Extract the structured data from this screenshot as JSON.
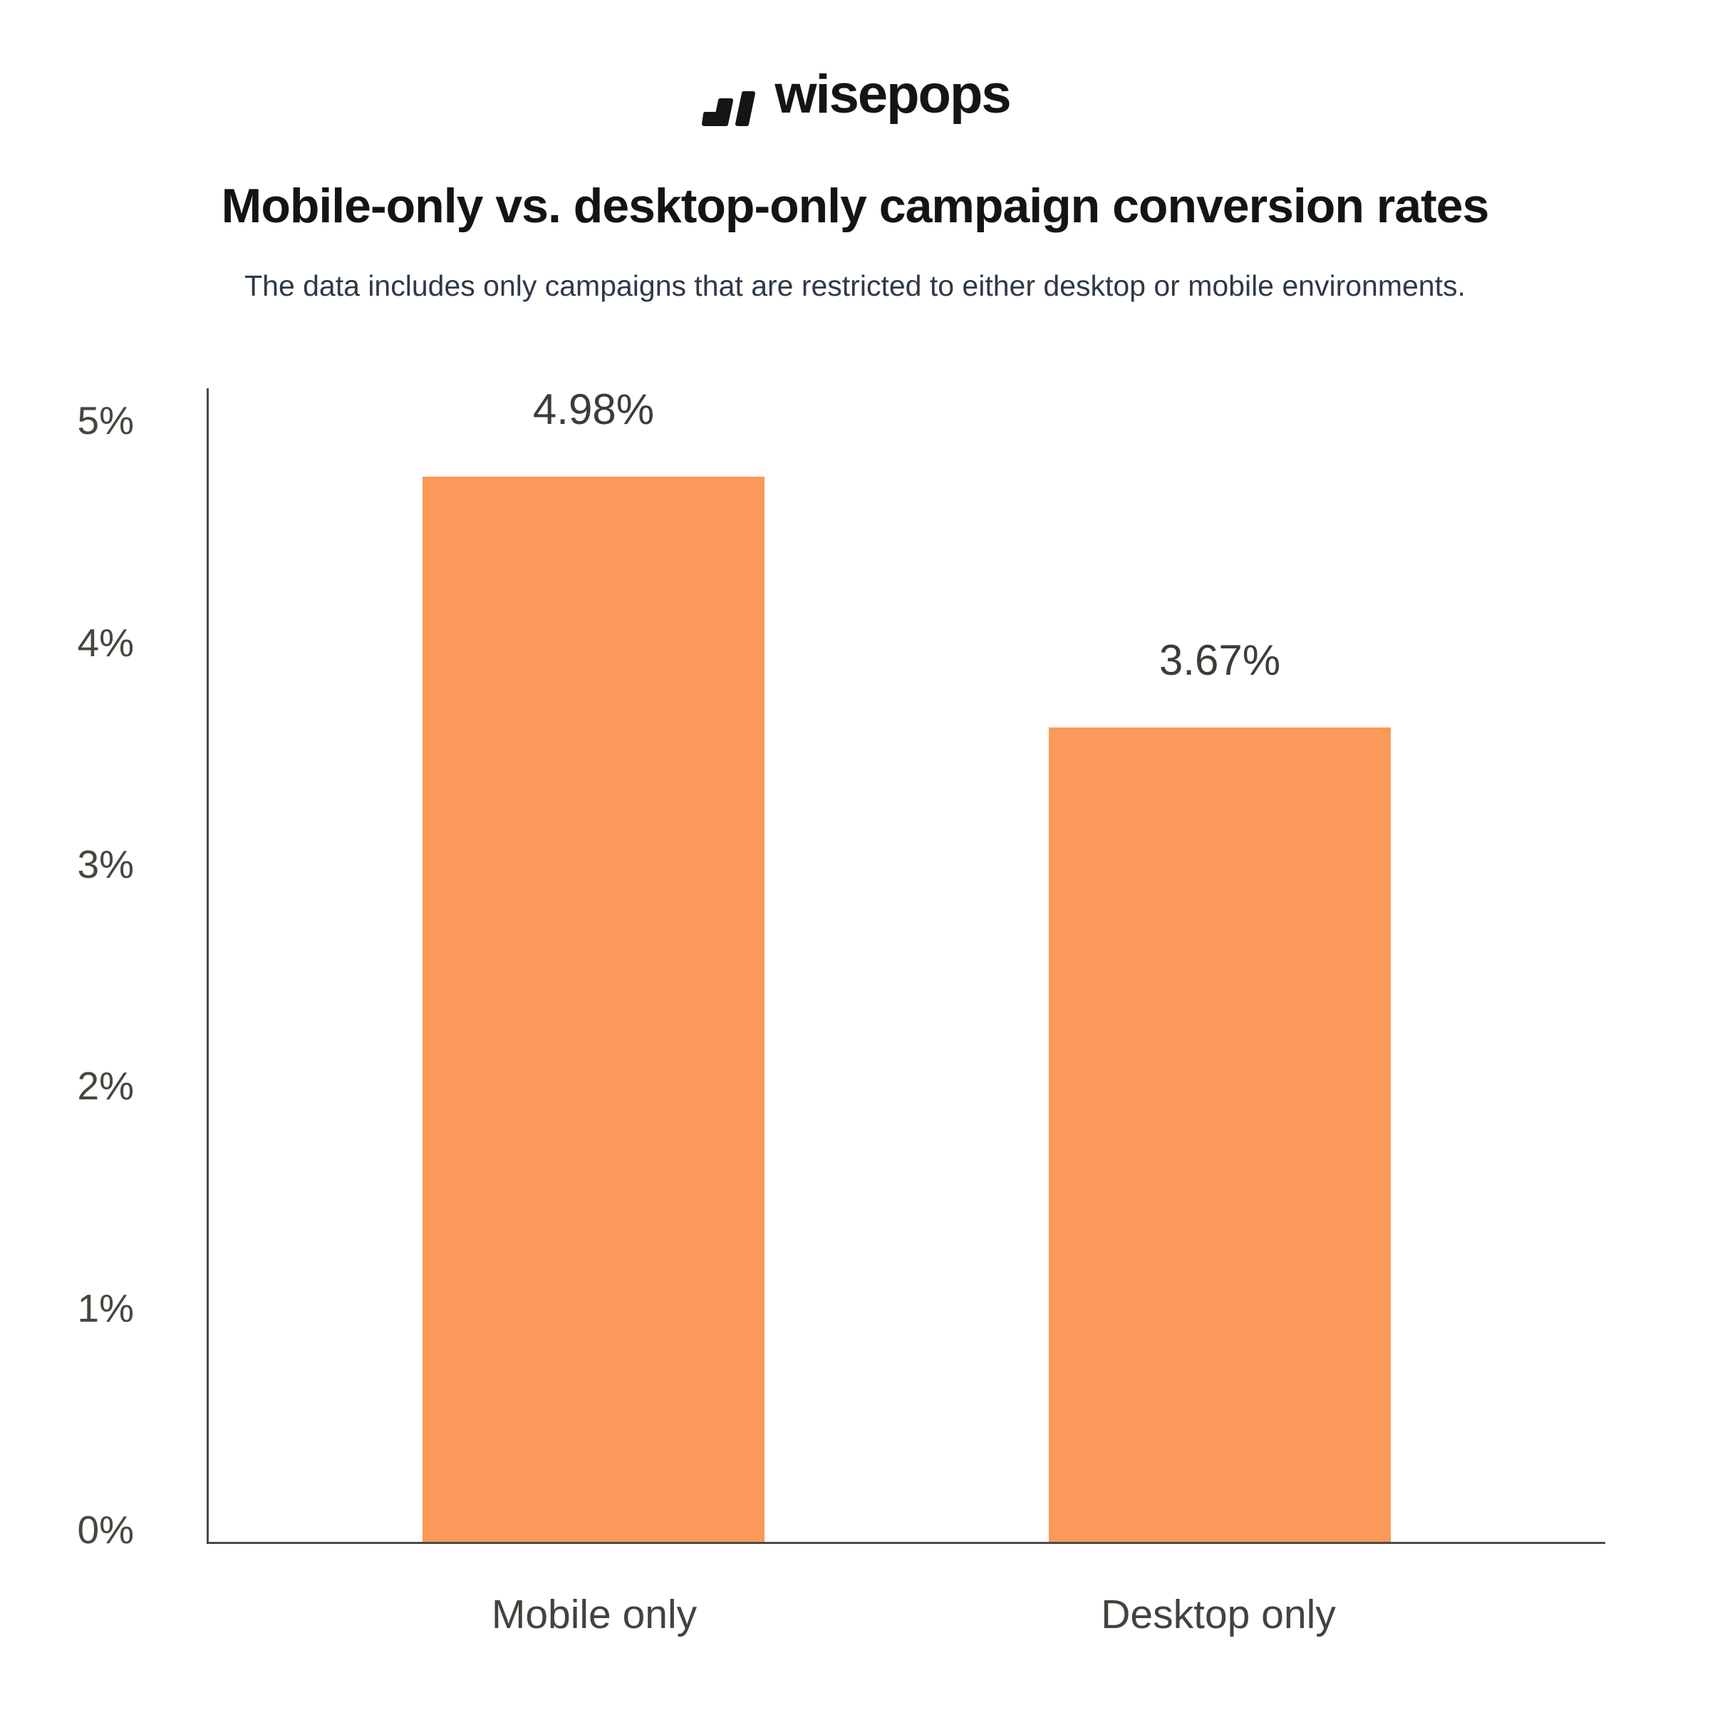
{
  "logo": {
    "brand": "wisepops"
  },
  "header": {
    "title": "Mobile-only vs. desktop-only campaign conversion rates",
    "subtitle": "The data includes only campaigns that are restricted to either desktop or mobile environments."
  },
  "chart_data": {
    "type": "bar",
    "title": "Mobile-only vs. desktop-only campaign conversion rates",
    "subtitle": "The data includes only campaigns that are restricted to either desktop or mobile environments.",
    "categories": [
      "Mobile only",
      "Desktop only"
    ],
    "values": [
      4.98,
      3.67
    ],
    "value_labels": [
      "4.98%",
      "3.67%"
    ],
    "xlabel": "",
    "ylabel": "",
    "ylim": [
      0,
      5.2
    ],
    "yticks": [
      5,
      4,
      3,
      2,
      1,
      0
    ],
    "ytick_labels": [
      "5%",
      "4%",
      "3%",
      "2%",
      "1%",
      "0%"
    ],
    "grid": false,
    "legend": false,
    "bar_color": "#FA995A",
    "axis_color": "#4B4B45",
    "label_color": "#3C3D37",
    "tick_color": "#46473F",
    "background_color": "#FFFFFF"
  }
}
